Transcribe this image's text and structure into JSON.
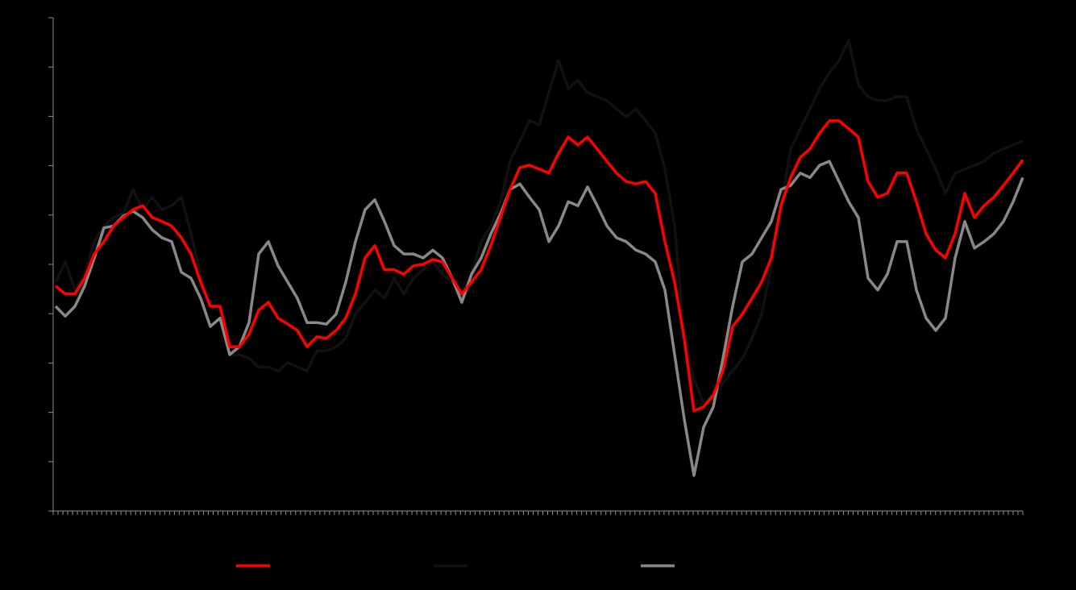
{
  "chart_data": {
    "type": "line",
    "categories": [
      null,
      null,
      null,
      null,
      null,
      null,
      null,
      null,
      null,
      null,
      null,
      null,
      null,
      null,
      null,
      null,
      null,
      null,
      null,
      null,
      null,
      null,
      null,
      null,
      null,
      null,
      null,
      null,
      null,
      null,
      null,
      null,
      null,
      null,
      null,
      null,
      null,
      null,
      null,
      null,
      null,
      null,
      null,
      null,
      null,
      null,
      null,
      null,
      null,
      null,
      null,
      null,
      null,
      null,
      null,
      null,
      null,
      null,
      null,
      null,
      null,
      null,
      null,
      null,
      null,
      null,
      null,
      null,
      null,
      null,
      null,
      null,
      null,
      null,
      null,
      null,
      null,
      null,
      null,
      null,
      null,
      null,
      null,
      null,
      null,
      null,
      null,
      null,
      null,
      null,
      null,
      null,
      null,
      null,
      null,
      null,
      null,
      null,
      null,
      null,
      null
    ],
    "series": [
      {
        "color": "#111111",
        "values": [
          46.4,
          50.5,
          44.8,
          48.0,
          54.6,
          57.8,
          59.5,
          60.3,
          65.2,
          61.1,
          63.6,
          61.1,
          61.9,
          63.6,
          56.2,
          48.0,
          41.5,
          40.7,
          31.7,
          31.7,
          30.9,
          29.2,
          29.2,
          28.4,
          30.1,
          29.2,
          28.4,
          32.5,
          32.5,
          33.3,
          35.0,
          39.9,
          42.3,
          44.8,
          43.1,
          47.2,
          44.0,
          47.2,
          48.9,
          50.5,
          48.0,
          46.4,
          43.1,
          48.0,
          54.6,
          57.8,
          62.7,
          70.9,
          75.0,
          79.1,
          78.3,
          84.8,
          91.3,
          85.6,
          87.3,
          84.8,
          84.0,
          83.2,
          81.5,
          79.9,
          81.5,
          79.1,
          76.6,
          69.3,
          57.8,
          35.0,
          26.8,
          21.9,
          22.7,
          26.0,
          28.4,
          30.9,
          35.0,
          39.9,
          49.7,
          61.9,
          73.4,
          77.5,
          81.5,
          85.6,
          88.9,
          91.3,
          95.4,
          86.4,
          84.0,
          83.2,
          83.2,
          84.0,
          84.0,
          77.5,
          73.4,
          69.3,
          64.4,
          68.5,
          69.3,
          70.1,
          70.9,
          72.5,
          73.4,
          74.2,
          75.0
        ]
      },
      {
        "color": "#888888",
        "values": [
          41.5,
          39.5,
          41.5,
          45.6,
          51.3,
          57.4,
          57.8,
          59.8,
          60.8,
          59.5,
          57.0,
          55.4,
          54.6,
          48.4,
          47.2,
          43.1,
          37.4,
          39.1,
          31.7,
          33.3,
          38.2,
          52.1,
          54.6,
          49.7,
          46.4,
          43.1,
          38.2,
          38.2,
          37.9,
          39.9,
          46.4,
          54.6,
          61.1,
          63.1,
          58.7,
          53.8,
          52.1,
          52.1,
          51.3,
          52.9,
          51.3,
          47.2,
          42.3,
          48.0,
          51.3,
          56.2,
          60.3,
          65.2,
          66.3,
          63.6,
          61.1,
          54.6,
          57.8,
          62.7,
          61.9,
          65.7,
          61.9,
          57.8,
          55.4,
          54.6,
          52.9,
          52.1,
          50.5,
          44.8,
          31.7,
          18.6,
          7.2,
          17.0,
          21.1,
          30.9,
          41.5,
          50.5,
          52.1,
          55.4,
          58.7,
          65.2,
          66.0,
          68.5,
          67.6,
          70.1,
          70.9,
          66.8,
          62.7,
          59.5,
          47.2,
          44.8,
          48.0,
          54.6,
          54.6,
          44.8,
          39.1,
          36.6,
          39.1,
          51.3,
          58.7,
          53.3,
          54.6,
          56.2,
          58.7,
          62.7,
          67.6
        ]
      },
      {
        "color": "#ff0000",
        "values": [
          45.6,
          44.0,
          44.0,
          47.2,
          52.1,
          54.6,
          57.8,
          59.5,
          61.1,
          61.9,
          59.5,
          58.7,
          57.8,
          55.4,
          52.1,
          46.4,
          41.5,
          41.5,
          33.3,
          33.3,
          35.8,
          40.7,
          42.3,
          39.1,
          37.9,
          36.6,
          33.3,
          35.3,
          35.0,
          36.6,
          39.1,
          44.0,
          51.3,
          53.8,
          48.9,
          48.9,
          48.0,
          49.7,
          50.0,
          51.0,
          50.5,
          47.2,
          44.0,
          46.4,
          48.9,
          53.8,
          59.5,
          65.2,
          69.6,
          70.1,
          69.3,
          68.5,
          72.5,
          75.8,
          74.2,
          75.8,
          73.4,
          70.9,
          68.5,
          66.8,
          66.3,
          66.8,
          64.4,
          54.6,
          46.4,
          35.0,
          20.3,
          21.1,
          23.5,
          28.4,
          37.4,
          39.9,
          43.1,
          46.4,
          51.3,
          61.9,
          67.6,
          71.7,
          73.4,
          76.6,
          79.1,
          79.1,
          77.5,
          75.8,
          66.8,
          63.6,
          64.4,
          68.5,
          68.5,
          62.7,
          56.2,
          52.9,
          51.3,
          56.2,
          64.4,
          59.5,
          61.9,
          63.6,
          66.0,
          68.5,
          71.2
        ]
      }
    ],
    "legend_order": [
      2,
      0,
      1
    ],
    "ylim": [
      0,
      100
    ],
    "yticks": [
      0,
      10,
      20,
      30,
      40,
      50,
      60,
      70,
      80,
      90,
      100
    ],
    "grid": false,
    "legend": "bottom"
  }
}
